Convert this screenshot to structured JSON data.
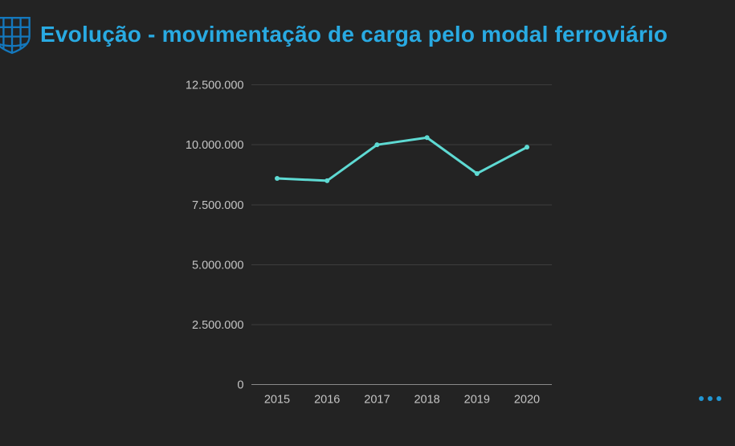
{
  "header": {
    "title": "Evolução - movimentação de carga pelo modal ferroviário",
    "logo_icon": "globe-shield-icon"
  },
  "colors": {
    "background": "#232323",
    "title": "#29AAE2",
    "logo": "#1478BD",
    "line": "#5EDAD3",
    "gridline": "#3C3C3C",
    "zero_line": "#8A8A8A",
    "axis_label": "#C4C4C4",
    "more_options": "#2196D3"
  },
  "chart_data": {
    "type": "line",
    "title": "Evolução - movimentação de carga pelo modal ferroviário",
    "categories": [
      "2015",
      "2016",
      "2017",
      "2018",
      "2019",
      "2020"
    ],
    "series": [
      {
        "name": "",
        "values": [
          8600000,
          8500000,
          10000000,
          10300000,
          8800000,
          9900000
        ]
      }
    ],
    "xlabel": "",
    "ylabel": "",
    "ylim": [
      0,
      12500000
    ],
    "yticks": [
      0,
      2500000,
      5000000,
      7500000,
      10000000,
      12500000
    ],
    "ytick_labels": [
      "0",
      "2.500.000",
      "5.000.000",
      "7.500.000",
      "10.000.000",
      "12.500.000"
    ],
    "grid": true,
    "legend": false,
    "markers": true,
    "line_color": "#5EDAD3"
  },
  "footer": {
    "more_options_icon": "ellipsis-icon"
  }
}
